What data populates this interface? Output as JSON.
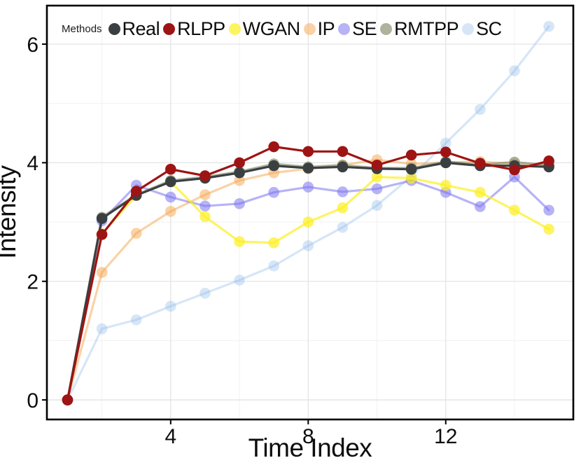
{
  "figure": {
    "legend_title": "Methods",
    "background": "#ffffff",
    "border_color": "#000000",
    "grid_major_color": "#e4e4e4",
    "grid_minor_color": "#f1f1f1"
  },
  "chart_data": {
    "type": "line",
    "title": "",
    "xlabel": "Time Index",
    "ylabel": "Intensity",
    "x": [
      1,
      2,
      3,
      4,
      5,
      6,
      7,
      8,
      9,
      10,
      11,
      12,
      13,
      14,
      15
    ],
    "x_ticks": [
      4,
      8,
      12
    ],
    "y_ticks": [
      0,
      2,
      4,
      6
    ],
    "x_minor_ticks": [
      2,
      6,
      10,
      14
    ],
    "y_minor_ticks": [
      1,
      3,
      5
    ],
    "xlim": [
      0.4,
      15.71
    ],
    "ylim": [
      -0.33,
      6.65
    ],
    "grid": "on",
    "legend_position": "top-inside",
    "series": [
      {
        "name": "Real",
        "color": "#3a3f42",
        "opacity": 1,
        "values": [
          0,
          3.06,
          3.45,
          3.68,
          3.74,
          3.83,
          3.95,
          3.91,
          3.93,
          3.9,
          3.89,
          4.0,
          3.95,
          3.95,
          3.93
        ]
      },
      {
        "name": "RLPP",
        "color": "#9e1414",
        "opacity": 1,
        "values": [
          0,
          2.79,
          3.52,
          3.89,
          3.78,
          4.0,
          4.27,
          4.19,
          4.19,
          3.96,
          4.13,
          4.18,
          3.99,
          3.88,
          4.03
        ]
      },
      {
        "name": "WGAN",
        "color": "#fcef20",
        "opacity": 0.7,
        "values": [
          0,
          2.8,
          3.45,
          3.68,
          3.09,
          2.67,
          2.65,
          3.0,
          3.24,
          3.76,
          3.74,
          3.62,
          3.5,
          3.2,
          2.88
        ]
      },
      {
        "name": "IP",
        "color": "#f5a54d",
        "opacity": 0.5,
        "values": [
          0,
          2.15,
          2.81,
          3.18,
          3.46,
          3.7,
          3.83,
          3.9,
          3.96,
          4.05,
          3.98,
          4.0,
          4.02,
          3.98,
          3.95
        ]
      },
      {
        "name": "SE",
        "color": "#7b74ee",
        "opacity": 0.55,
        "values": [
          0,
          3.02,
          3.62,
          3.42,
          3.27,
          3.31,
          3.5,
          3.59,
          3.51,
          3.56,
          3.7,
          3.5,
          3.26,
          3.76,
          3.2
        ]
      },
      {
        "name": "RMTPP",
        "color": "#76805a",
        "opacity": 0.6,
        "values": [
          0,
          3.08,
          3.46,
          3.7,
          3.76,
          3.85,
          3.98,
          3.93,
          3.96,
          3.91,
          3.91,
          4.02,
          3.97,
          4.01,
          3.96
        ]
      },
      {
        "name": "SC",
        "color": "#92bdeb",
        "opacity": 0.38,
        "values": [
          0,
          1.2,
          1.35,
          1.58,
          1.8,
          2.02,
          2.26,
          2.6,
          2.91,
          3.28,
          3.77,
          4.33,
          4.9,
          5.55,
          6.3
        ]
      }
    ]
  }
}
